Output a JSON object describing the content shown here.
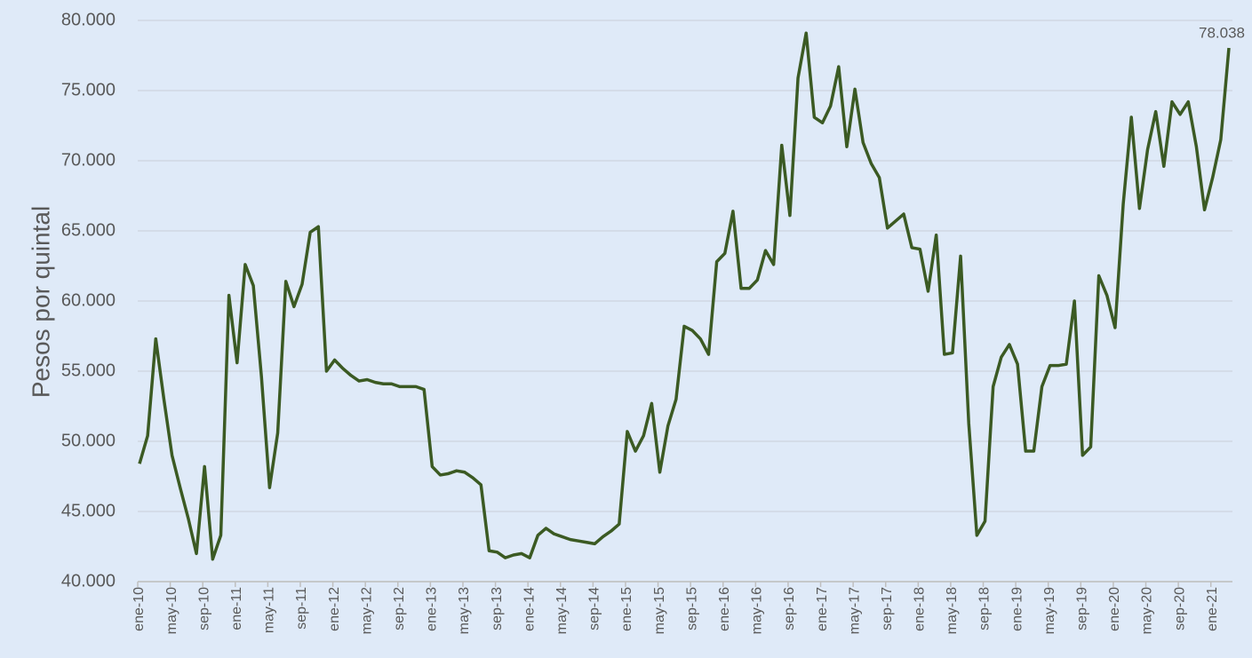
{
  "chart_data": {
    "type": "line",
    "y_label": "Pesos por quintal",
    "color": "#3b5a23",
    "grid": true,
    "categories": [
      "ene-10",
      null,
      null,
      null,
      "may-10",
      null,
      null,
      null,
      "sep-10",
      null,
      null,
      null,
      "ene-11",
      null,
      null,
      null,
      "may-11",
      null,
      null,
      null,
      "sep-11",
      null,
      null,
      null,
      "ene-12",
      null,
      null,
      null,
      "may-12",
      null,
      null,
      null,
      "sep-12",
      null,
      null,
      null,
      "ene-13",
      null,
      null,
      null,
      "may-13",
      null,
      null,
      null,
      "sep-13",
      null,
      null,
      null,
      "ene-14",
      null,
      null,
      null,
      "may-14",
      null,
      null,
      null,
      "sep-14",
      null,
      null,
      null,
      "ene-15",
      null,
      null,
      null,
      "may-15",
      null,
      null,
      null,
      "sep-15",
      null,
      null,
      null,
      "ene-16",
      null,
      null,
      null,
      "may-16",
      null,
      null,
      null,
      "sep-16",
      null,
      null,
      null,
      "ene-17",
      null,
      null,
      null,
      "may-17",
      null,
      null,
      null,
      "sep-17",
      null,
      null,
      null,
      "ene-18",
      null,
      null,
      null,
      "may-18",
      null,
      null,
      null,
      "sep-18",
      null,
      null,
      null,
      "ene-19",
      null,
      null,
      null,
      "may-19",
      null,
      null,
      null,
      "sep-19",
      null,
      null,
      null,
      "ene-20",
      null,
      null,
      null,
      "may-20",
      null,
      null,
      null,
      "sep-20",
      null,
      null,
      null,
      "ene-21",
      null,
      null
    ],
    "values": [
      48400,
      50400,
      57300,
      53000,
      49000,
      46700,
      44500,
      42000,
      48200,
      41600,
      43300,
      60400,
      55600,
      62600,
      61100,
      54600,
      46700,
      50600,
      61400,
      59600,
      61200,
      64900,
      65300,
      55000,
      55800,
      55200,
      54700,
      54300,
      54400,
      54200,
      54100,
      54100,
      53900,
      53900,
      53900,
      53700,
      48200,
      47600,
      47700,
      47900,
      47800,
      47400,
      46900,
      42200,
      42100,
      41700,
      41900,
      42000,
      41700,
      43300,
      43800,
      43400,
      43200,
      43000,
      42900,
      42800,
      42700,
      43200,
      43600,
      44100,
      50700,
      49300,
      50400,
      52700,
      47800,
      51100,
      53000,
      58200,
      57900,
      57300,
      56200,
      62800,
      63400,
      66400,
      60900,
      60900,
      61500,
      63600,
      62600,
      71100,
      66100,
      75900,
      79100,
      73100,
      72700,
      73900,
      76700,
      71000,
      75100,
      71300,
      69800,
      68800,
      65200,
      65700,
      66200,
      63800,
      63700,
      60700,
      64700,
      56200,
      56300,
      63200,
      51300,
      43300,
      44300,
      53900,
      56000,
      56900,
      55500,
      49300,
      49300,
      53900,
      55400,
      55400,
      55500,
      60000,
      49000,
      49600,
      61800,
      60400,
      58100,
      66900,
      73100,
      66600,
      70800,
      73500,
      69600,
      74200,
      73300,
      74200,
      71000,
      66500,
      68800,
      71500,
      78038
    ],
    "value_labels": [
      null,
      null,
      null,
      null,
      null,
      null,
      null,
      null,
      null,
      null,
      null,
      null,
      null,
      null,
      null,
      null,
      null,
      null,
      null,
      null,
      null,
      null,
      null,
      null,
      null,
      null,
      null,
      null,
      null,
      null,
      null,
      null,
      null,
      null,
      null,
      null,
      null,
      null,
      null,
      null,
      null,
      null,
      null,
      null,
      null,
      null,
      null,
      null,
      null,
      null,
      null,
      null,
      null,
      null,
      null,
      null,
      null,
      null,
      null,
      null,
      null,
      null,
      null,
      null,
      null,
      null,
      null,
      null,
      null,
      null,
      null,
      null,
      null,
      null,
      null,
      null,
      null,
      null,
      null,
      null,
      null,
      null,
      null,
      null,
      null,
      null,
      null,
      null,
      null,
      null,
      null,
      null,
      null,
      null,
      null,
      null,
      null,
      null,
      null,
      null,
      null,
      null,
      null,
      null,
      null,
      null,
      null,
      null,
      null,
      null,
      null,
      null,
      null,
      null,
      null,
      null,
      null,
      null,
      null,
      null,
      null,
      null,
      null,
      null,
      null,
      null,
      null,
      null,
      null,
      null,
      null,
      null,
      null,
      null,
      "78.038"
    ],
    "ylim": [
      40000,
      80000
    ],
    "yticks": [
      {
        "value": 40000,
        "label": "40.000"
      },
      {
        "value": 45000,
        "label": "45.000"
      },
      {
        "value": 50000,
        "label": "50.000"
      },
      {
        "value": 55000,
        "label": "55.000"
      },
      {
        "value": 60000,
        "label": "60.000"
      },
      {
        "value": 65000,
        "label": "65.000"
      },
      {
        "value": 70000,
        "label": "70.000"
      },
      {
        "value": 75000,
        "label": "75.000"
      },
      {
        "value": 80000,
        "label": "80.000"
      }
    ]
  }
}
